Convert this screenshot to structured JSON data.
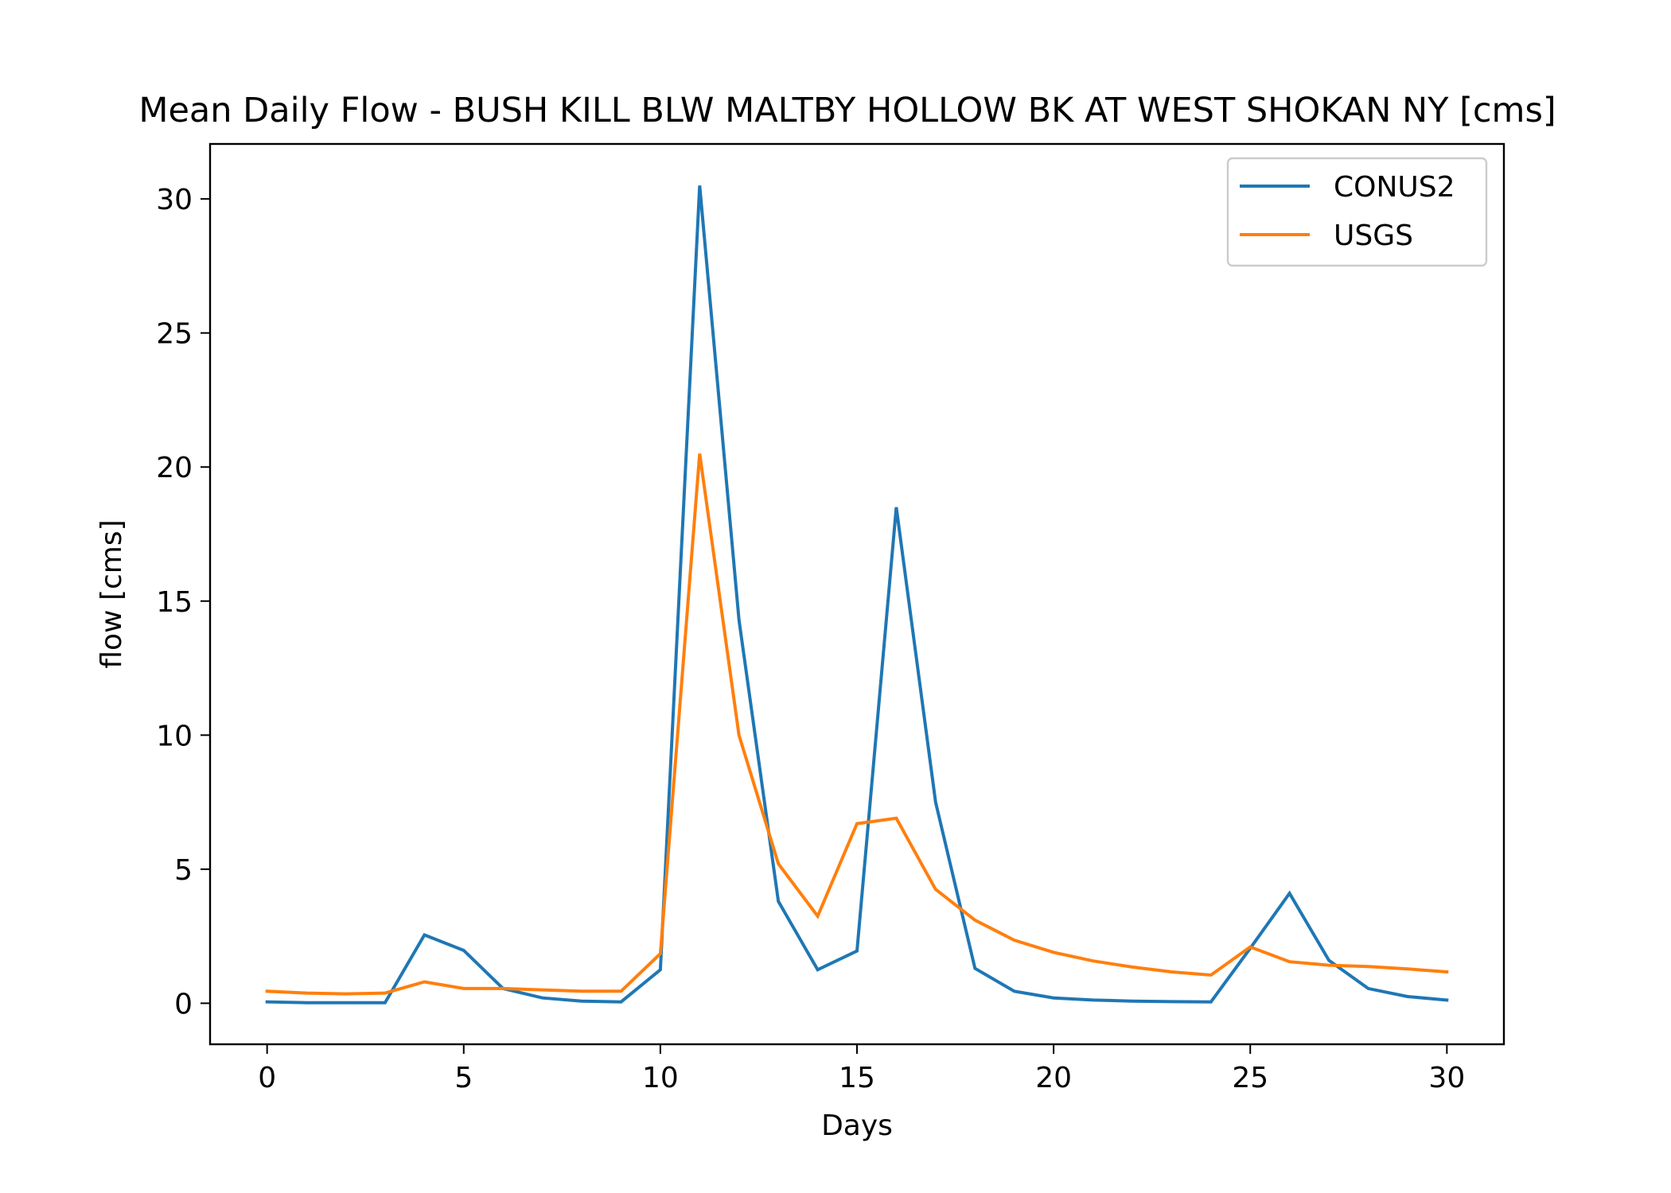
{
  "chart_data": {
    "type": "line",
    "title": "Mean Daily Flow - BUSH KILL BLW MALTBY HOLLOW BK AT WEST SHOKAN NY [cms]",
    "xlabel": "Days",
    "ylabel": "flow [cms]",
    "xlim": [
      -1.45,
      31.45
    ],
    "ylim": [
      -1.53,
      32.05
    ],
    "xticks": [
      0,
      5,
      10,
      15,
      20,
      25,
      30
    ],
    "yticks": [
      0,
      5,
      10,
      15,
      20,
      25,
      30
    ],
    "grid": false,
    "legend_position": "top-right",
    "x": [
      0,
      1,
      2,
      3,
      4,
      5,
      6,
      7,
      8,
      9,
      10,
      11,
      12,
      13,
      14,
      15,
      16,
      17,
      18,
      19,
      20,
      21,
      22,
      23,
      24,
      25,
      26,
      27,
      28,
      29,
      30
    ],
    "series": [
      {
        "name": "CONUS2",
        "color": "#1f77b4",
        "values": [
          0.05,
          0.02,
          0.02,
          0.02,
          2.55,
          1.97,
          0.55,
          0.2,
          0.08,
          0.05,
          1.25,
          30.5,
          14.3,
          3.8,
          1.25,
          1.95,
          18.5,
          7.5,
          1.3,
          0.45,
          0.2,
          0.12,
          0.08,
          0.06,
          0.05,
          2.05,
          4.1,
          1.6,
          0.55,
          0.25,
          0.12
        ]
      },
      {
        "name": "USGS",
        "color": "#ff7f0e",
        "values": [
          0.45,
          0.38,
          0.35,
          0.38,
          0.8,
          0.55,
          0.55,
          0.5,
          0.45,
          0.45,
          1.85,
          20.5,
          10.0,
          5.2,
          3.25,
          6.7,
          6.9,
          4.25,
          3.1,
          2.35,
          1.9,
          1.58,
          1.35,
          1.17,
          1.05,
          2.1,
          1.55,
          1.42,
          1.37,
          1.28,
          1.17
        ]
      }
    ]
  }
}
